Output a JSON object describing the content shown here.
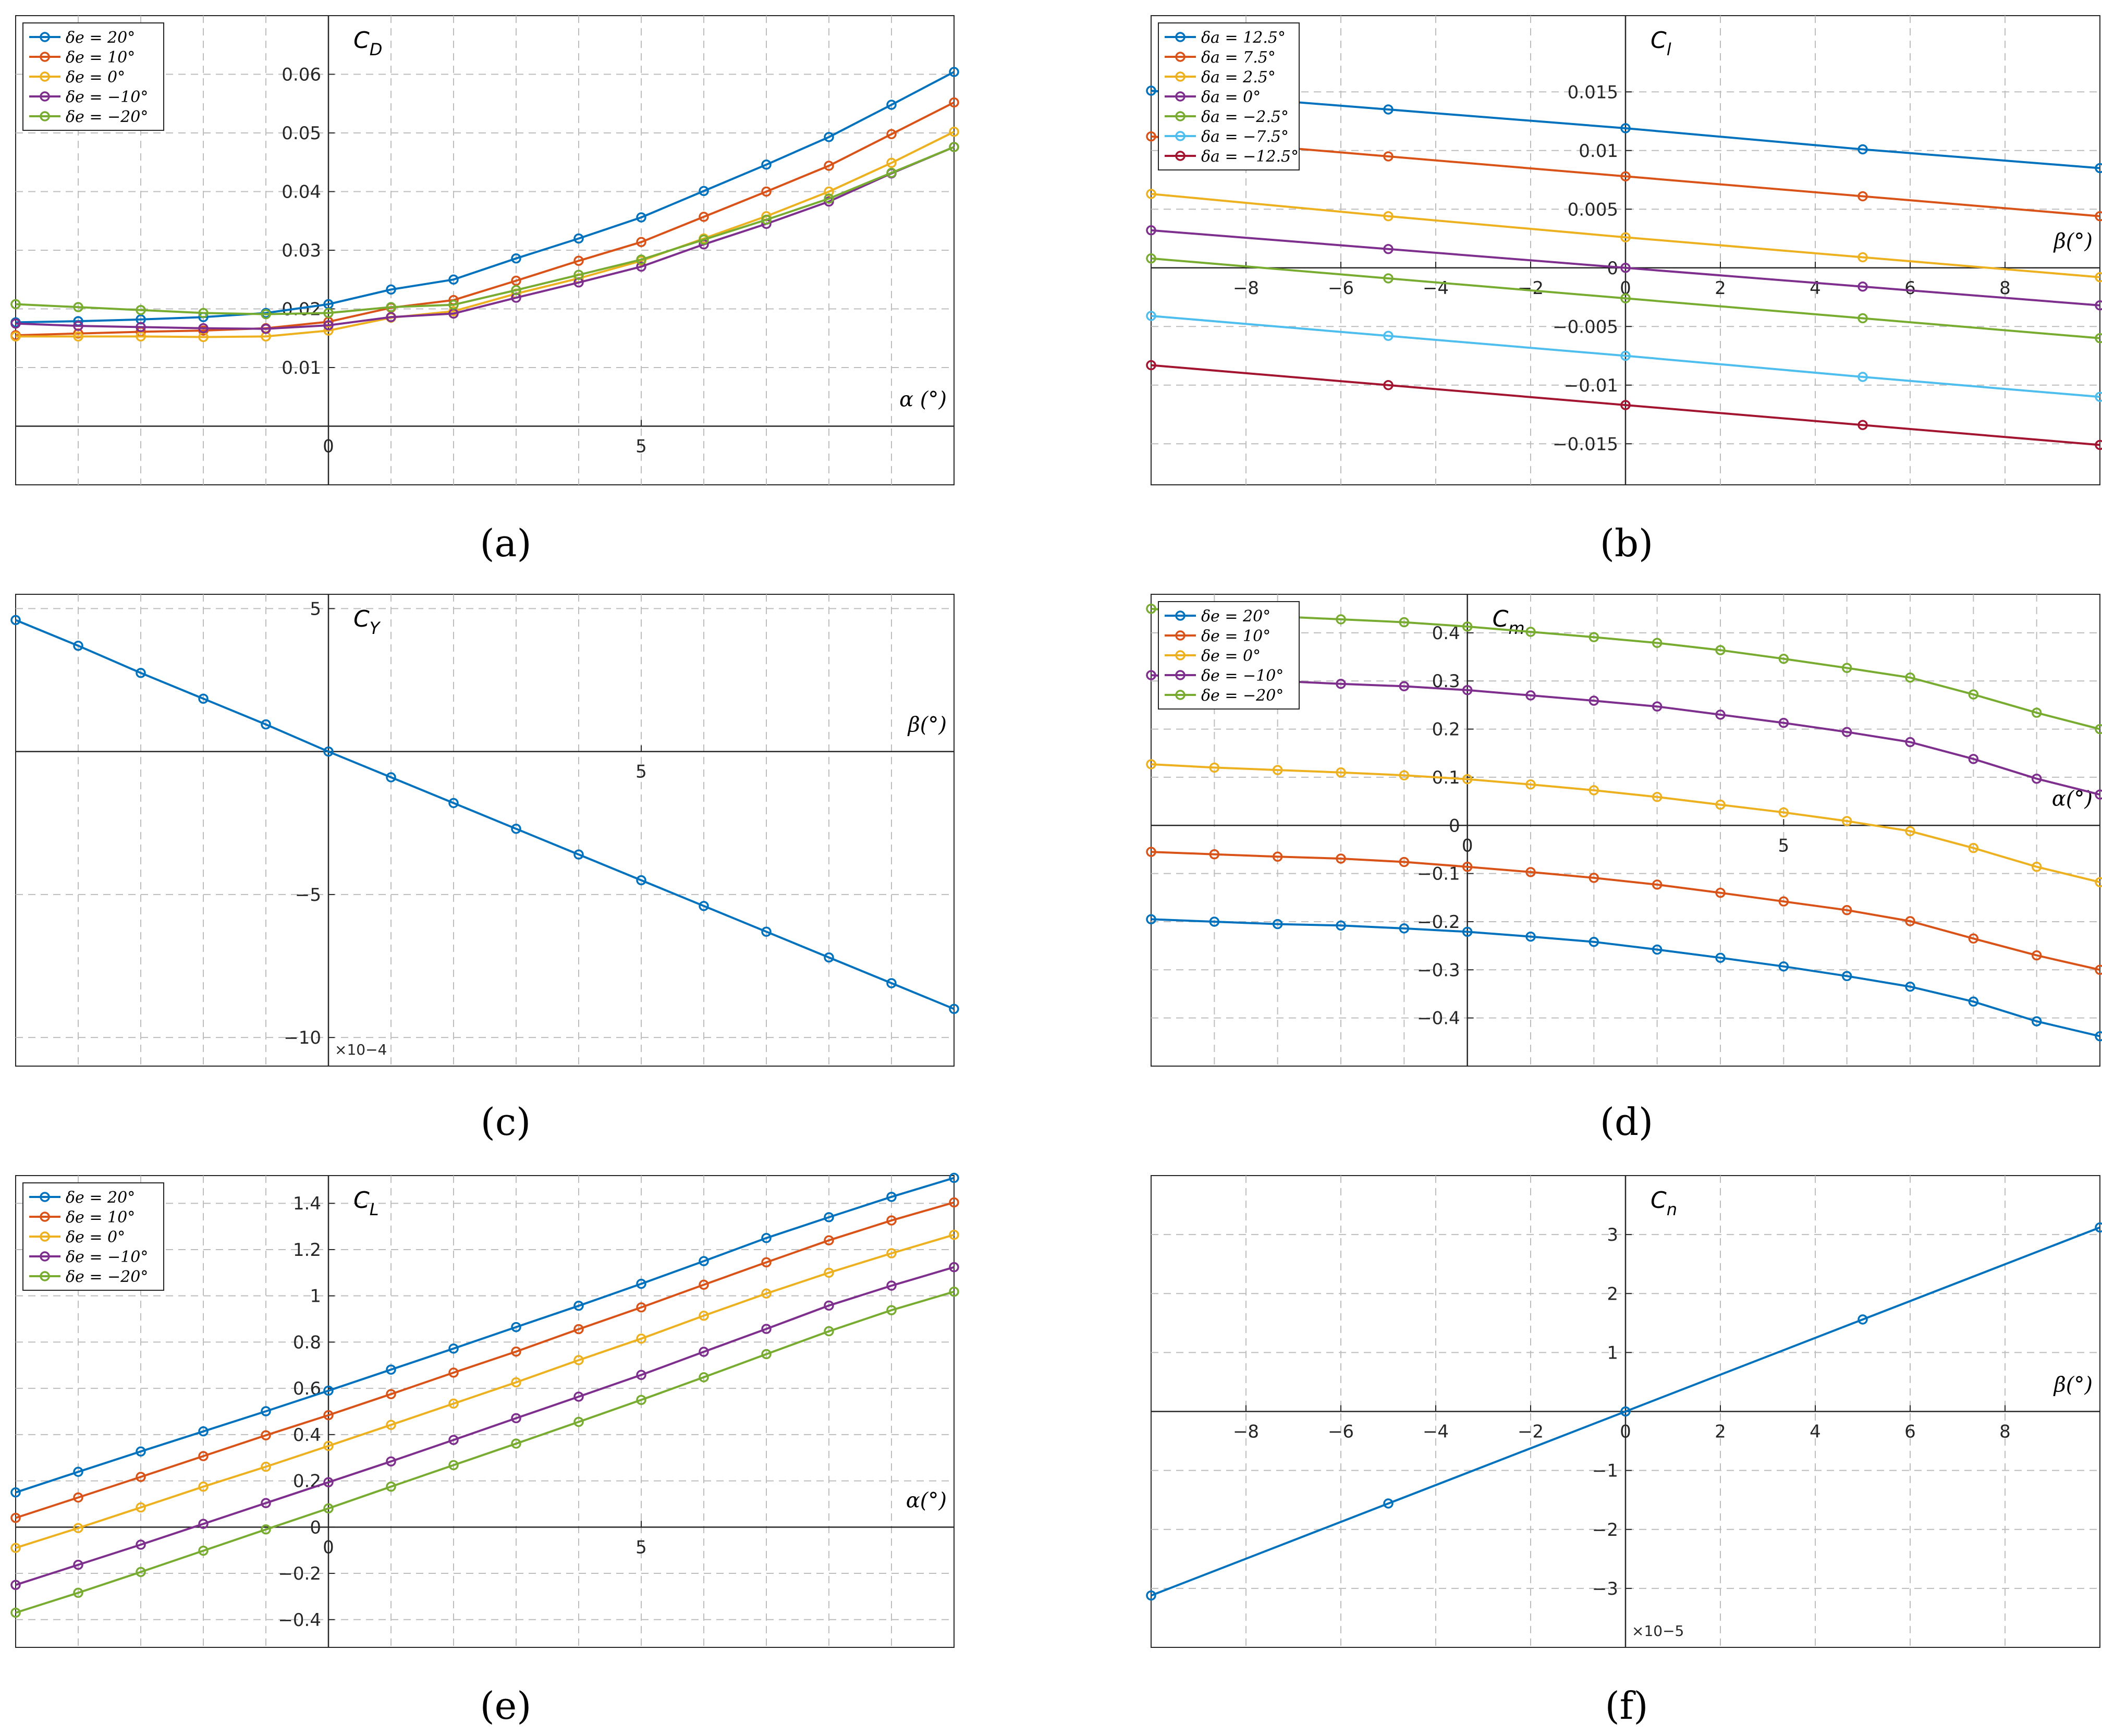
{
  "chart_data": [
    {
      "id": "a",
      "type": "line",
      "caption": "(a)",
      "title": "C",
      "title_sub": "D",
      "xlabel": "α (°)",
      "xlim": [
        -5,
        10
      ],
      "ylim": [
        -0.01,
        0.07
      ],
      "xticks": [
        {
          "v": 0,
          "label": "0"
        },
        {
          "v": 5,
          "label": "5"
        }
      ],
      "yticks": [
        {
          "v": 0.01,
          "label": "0.01"
        },
        {
          "v": 0.02,
          "label": "0.02"
        },
        {
          "v": 0.03,
          "label": "0.03"
        },
        {
          "v": 0.04,
          "label": "0.04"
        },
        {
          "v": 0.05,
          "label": "0.05"
        },
        {
          "v": 0.06,
          "label": "0.06"
        }
      ],
      "xgrid": [
        -4,
        -3,
        -2,
        -1,
        0,
        1,
        2,
        3,
        4,
        5,
        6,
        7,
        8,
        9
      ],
      "ygrid": [
        0.01,
        0.02,
        0.03,
        0.04,
        0.05,
        0.06
      ],
      "x": [
        -5,
        -4,
        -3,
        -2,
        -1,
        0,
        1,
        2,
        3,
        4,
        5,
        6,
        7,
        8,
        9,
        10
      ],
      "series": [
        {
          "name": "δe = 20°",
          "color": "#0072BD",
          "values": [
            0.0177,
            0.0179,
            0.0182,
            0.0186,
            0.0193,
            0.0208,
            0.0233,
            0.025,
            0.0286,
            0.032,
            0.0356,
            0.0401,
            0.0446,
            0.0493,
            0.0548,
            0.0604
          ]
        },
        {
          "name": "δe = 10°",
          "color": "#D95319",
          "values": [
            0.0155,
            0.0158,
            0.0161,
            0.0163,
            0.0167,
            0.0178,
            0.0202,
            0.0215,
            0.0248,
            0.0282,
            0.0314,
            0.0357,
            0.04,
            0.0444,
            0.0498,
            0.0552
          ]
        },
        {
          "name": "δe = 0°",
          "color": "#EDB120",
          "values": [
            0.0153,
            0.0153,
            0.0153,
            0.0152,
            0.0153,
            0.0163,
            0.0185,
            0.0196,
            0.0226,
            0.0252,
            0.0282,
            0.032,
            0.0358,
            0.04,
            0.0449,
            0.0502
          ]
        },
        {
          "name": "δe = −10°",
          "color": "#7E2F8E",
          "values": [
            0.0175,
            0.0171,
            0.0169,
            0.0167,
            0.0166,
            0.0172,
            0.0186,
            0.0192,
            0.0219,
            0.0245,
            0.0272,
            0.031,
            0.0345,
            0.0383,
            0.0431,
            0.0476
          ]
        },
        {
          "name": "δe = −20°",
          "color": "#77AC30",
          "values": [
            0.0208,
            0.0203,
            0.0198,
            0.0193,
            0.0191,
            0.0193,
            0.0203,
            0.0207,
            0.0232,
            0.0258,
            0.0284,
            0.0318,
            0.0352,
            0.0388,
            0.0432,
            0.0476
          ]
        }
      ],
      "legend": "top-left"
    },
    {
      "id": "b",
      "type": "line",
      "caption": "(b)",
      "title": "C",
      "title_sub": "l",
      "xlabel": "β(°)",
      "xlim": [
        -10,
        10
      ],
      "ylim": [
        -0.0185,
        0.0215
      ],
      "xticks": [
        {
          "v": -8,
          "label": "−8"
        },
        {
          "v": -6,
          "label": "−6"
        },
        {
          "v": -4,
          "label": "−4"
        },
        {
          "v": -2,
          "label": "−2"
        },
        {
          "v": 0,
          "label": "0"
        },
        {
          "v": 2,
          "label": "2"
        },
        {
          "v": 4,
          "label": "4"
        },
        {
          "v": 6,
          "label": "6"
        },
        {
          "v": 8,
          "label": "8"
        }
      ],
      "yticks": [
        {
          "v": -0.015,
          "label": "−0.015"
        },
        {
          "v": -0.01,
          "label": "−0.01"
        },
        {
          "v": -0.005,
          "label": "−0.005"
        },
        {
          "v": 0,
          "label": "0"
        },
        {
          "v": 0.005,
          "label": "0.005"
        },
        {
          "v": 0.01,
          "label": "0.01"
        },
        {
          "v": 0.015,
          "label": "0.015"
        }
      ],
      "xgrid": [
        -8,
        -6,
        -4,
        -2,
        0,
        2,
        4,
        6,
        8
      ],
      "ygrid": [
        -0.015,
        -0.01,
        -0.005,
        0.005,
        0.01,
        0.015
      ],
      "x": [
        -10,
        -5,
        0,
        5,
        10
      ],
      "series": [
        {
          "name": "δa = 12.5°",
          "color": "#0072BD",
          "values": [
            0.0151,
            0.0135,
            0.0119,
            0.0101,
            0.0085
          ]
        },
        {
          "name": "δa = 7.5°",
          "color": "#D95319",
          "values": [
            0.0112,
            0.0095,
            0.0078,
            0.0061,
            0.0044
          ]
        },
        {
          "name": "δa = 2.5°",
          "color": "#EDB120",
          "values": [
            0.0063,
            0.0044,
            0.0026,
            0.0009,
            -0.0008
          ]
        },
        {
          "name": "δa = 0°",
          "color": "#7E2F8E",
          "values": [
            0.0032,
            0.0016,
            0.0,
            -0.0016,
            -0.0032
          ]
        },
        {
          "name": "δa = −2.5°",
          "color": "#77AC30",
          "values": [
            0.0008,
            -0.0009,
            -0.0026,
            -0.0043,
            -0.006
          ]
        },
        {
          "name": "δa = −7.5°",
          "color": "#4DBEEE",
          "values": [
            -0.0041,
            -0.0058,
            -0.0075,
            -0.0093,
            -0.011
          ]
        },
        {
          "name": "δa = −12.5°",
          "color": "#A2142F",
          "values": [
            -0.0083,
            -0.01,
            -0.0117,
            -0.0134,
            -0.0151
          ]
        }
      ],
      "legend": "top-left"
    },
    {
      "id": "c",
      "type": "line",
      "caption": "(c)",
      "title": "C",
      "title_sub": "Y",
      "xlabel": "β(°)",
      "xlim": [
        -5,
        10
      ],
      "ylim": [
        -11,
        5.5
      ],
      "y_multiplier": "×10−4",
      "xticks": [
        {
          "v": 5,
          "label": "5"
        }
      ],
      "yticks": [
        {
          "v": -10,
          "label": "−10"
        },
        {
          "v": -5,
          "label": "−5"
        },
        {
          "v": 5,
          "label": "5"
        }
      ],
      "xgrid": [
        -4,
        -3,
        -2,
        -1,
        1,
        2,
        3,
        4,
        5,
        6,
        7,
        8,
        9
      ],
      "ygrid": [
        -10,
        -5,
        5
      ],
      "x": [
        -5,
        -4,
        -3,
        -2,
        -1,
        0,
        1,
        2,
        3,
        4,
        5,
        6,
        7,
        8,
        9,
        10
      ],
      "series": [
        {
          "name": "CY",
          "color": "#0072BD",
          "values": [
            4.6,
            3.7,
            2.75,
            1.85,
            0.95,
            0.0,
            -0.9,
            -1.8,
            -2.7,
            -3.6,
            -4.5,
            -5.4,
            -6.3,
            -7.2,
            -8.1,
            -9.0
          ]
        }
      ],
      "legend": "none"
    },
    {
      "id": "d",
      "type": "line",
      "caption": "(d)",
      "title": "C",
      "title_sub": "m",
      "xlabel": "α(°)",
      "xlim": [
        -5,
        10
      ],
      "ylim": [
        -0.5,
        0.48
      ],
      "xticks": [
        {
          "v": 0,
          "label": "0"
        },
        {
          "v": 5,
          "label": "5"
        }
      ],
      "yticks": [
        {
          "v": -0.4,
          "label": "−0.4"
        },
        {
          "v": -0.3,
          "label": "−0.3"
        },
        {
          "v": -0.2,
          "label": "−0.2"
        },
        {
          "v": -0.1,
          "label": "−0.1"
        },
        {
          "v": 0,
          "label": "0"
        },
        {
          "v": 0.1,
          "label": "0.1"
        },
        {
          "v": 0.2,
          "label": "0.2"
        },
        {
          "v": 0.3,
          "label": "0.3"
        },
        {
          "v": 0.4,
          "label": "0.4"
        }
      ],
      "xgrid": [
        -4,
        -3,
        -2,
        -1,
        1,
        2,
        3,
        4,
        5,
        6,
        7,
        8,
        9
      ],
      "ygrid": [
        -0.4,
        -0.3,
        -0.2,
        -0.1,
        0.1,
        0.2,
        0.3,
        0.4
      ],
      "x": [
        -5,
        -4,
        -3,
        -2,
        -1,
        0,
        1,
        2,
        3,
        4,
        5,
        6,
        7,
        8,
        9,
        10
      ],
      "series": [
        {
          "name": "δe = 20°",
          "color": "#0072BD",
          "values": [
            -0.195,
            -0.2,
            -0.205,
            -0.208,
            -0.214,
            -0.221,
            -0.231,
            -0.242,
            -0.258,
            -0.275,
            -0.293,
            -0.313,
            -0.335,
            -0.366,
            -0.407,
            -0.438
          ]
        },
        {
          "name": "δe = 10°",
          "color": "#D95319",
          "values": [
            -0.055,
            -0.06,
            -0.065,
            -0.069,
            -0.076,
            -0.086,
            -0.097,
            -0.109,
            -0.123,
            -0.14,
            -0.158,
            -0.176,
            -0.199,
            -0.235,
            -0.27,
            -0.3
          ]
        },
        {
          "name": "δe = 0°",
          "color": "#EDB120",
          "values": [
            0.127,
            0.12,
            0.115,
            0.11,
            0.104,
            0.096,
            0.085,
            0.073,
            0.059,
            0.043,
            0.027,
            0.009,
            -0.012,
            -0.047,
            -0.086,
            -0.118
          ]
        },
        {
          "name": "δe = −10°",
          "color": "#7E2F8E",
          "values": [
            0.312,
            0.305,
            0.3,
            0.294,
            0.289,
            0.281,
            0.27,
            0.259,
            0.247,
            0.23,
            0.213,
            0.194,
            0.173,
            0.138,
            0.097,
            0.064
          ]
        },
        {
          "name": "δe = −20°",
          "color": "#77AC30",
          "values": [
            0.45,
            0.44,
            0.434,
            0.428,
            0.422,
            0.413,
            0.402,
            0.391,
            0.379,
            0.364,
            0.346,
            0.327,
            0.307,
            0.272,
            0.234,
            0.2
          ]
        }
      ],
      "legend": "top-left"
    },
    {
      "id": "e",
      "type": "line",
      "caption": "(e)",
      "title": "C",
      "title_sub": "L",
      "xlabel": "α(°)",
      "xlim": [
        -5,
        10
      ],
      "ylim": [
        -0.52,
        1.52
      ],
      "xticks": [
        {
          "v": 0,
          "label": "0"
        },
        {
          "v": 5,
          "label": "5"
        }
      ],
      "yticks": [
        {
          "v": -0.4,
          "label": "−0.4"
        },
        {
          "v": -0.2,
          "label": "−0.2"
        },
        {
          "v": 0,
          "label": "0"
        },
        {
          "v": 0.2,
          "label": "0.2"
        },
        {
          "v": 0.4,
          "label": "0.4"
        },
        {
          "v": 0.6,
          "label": "0.6"
        },
        {
          "v": 0.8,
          "label": "0.8"
        },
        {
          "v": 1,
          "label": "1"
        },
        {
          "v": 1.2,
          "label": "1.2"
        },
        {
          "v": 1.4,
          "label": "1.4"
        }
      ],
      "xgrid": [
        -4,
        -3,
        -2,
        -1,
        0,
        1,
        2,
        3,
        4,
        5,
        6,
        7,
        8,
        9
      ],
      "ygrid": [
        -0.4,
        -0.2,
        0.2,
        0.4,
        0.6,
        0.8,
        1,
        1.2,
        1.4
      ],
      "x": [
        -5,
        -4,
        -3,
        -2,
        -1,
        0,
        1,
        2,
        3,
        4,
        5,
        6,
        7,
        8,
        9,
        10
      ],
      "series": [
        {
          "name": "δe = 20°",
          "color": "#0072BD",
          "values": [
            0.15,
            0.239,
            0.327,
            0.414,
            0.501,
            0.59,
            0.681,
            0.772,
            0.865,
            0.957,
            1.052,
            1.15,
            1.25,
            1.34,
            1.428,
            1.51
          ]
        },
        {
          "name": "δe = 10°",
          "color": "#D95319",
          "values": [
            0.04,
            0.128,
            0.217,
            0.307,
            0.397,
            0.484,
            0.575,
            0.668,
            0.759,
            0.856,
            0.95,
            1.048,
            1.145,
            1.24,
            1.326,
            1.404
          ]
        },
        {
          "name": "δe = 0°",
          "color": "#EDB120",
          "values": [
            -0.09,
            -0.004,
            0.085,
            0.175,
            0.261,
            0.351,
            0.442,
            0.534,
            0.626,
            0.722,
            0.815,
            0.914,
            1.01,
            1.1,
            1.184,
            1.264
          ]
        },
        {
          "name": "δe = −10°",
          "color": "#7E2F8E",
          "values": [
            -0.25,
            -0.163,
            -0.076,
            0.014,
            0.104,
            0.194,
            0.284,
            0.377,
            0.471,
            0.564,
            0.658,
            0.758,
            0.857,
            0.958,
            1.044,
            1.124
          ]
        },
        {
          "name": "δe = −20°",
          "color": "#77AC30",
          "values": [
            -0.37,
            -0.284,
            -0.194,
            -0.102,
            -0.01,
            0.081,
            0.175,
            0.268,
            0.361,
            0.455,
            0.55,
            0.648,
            0.748,
            0.847,
            0.938,
            1.018
          ]
        }
      ],
      "legend": "top-left"
    },
    {
      "id": "f",
      "type": "line",
      "caption": "(f)",
      "title": "C",
      "title_sub": "n",
      "xlabel": "β(°)",
      "xlim": [
        -10,
        10
      ],
      "ylim": [
        -4,
        4
      ],
      "y_multiplier": "×10−5",
      "xticks": [
        {
          "v": -8,
          "label": "−8"
        },
        {
          "v": -6,
          "label": "−6"
        },
        {
          "v": -4,
          "label": "−4"
        },
        {
          "v": -2,
          "label": "−2"
        },
        {
          "v": 0,
          "label": "0"
        },
        {
          "v": 2,
          "label": "2"
        },
        {
          "v": 4,
          "label": "4"
        },
        {
          "v": 6,
          "label": "6"
        },
        {
          "v": 8,
          "label": "8"
        }
      ],
      "yticks": [
        {
          "v": -3,
          "label": "−3"
        },
        {
          "v": -2,
          "label": "−2"
        },
        {
          "v": -1,
          "label": "−1"
        },
        {
          "v": 1,
          "label": "1"
        },
        {
          "v": 2,
          "label": "2"
        },
        {
          "v": 3,
          "label": "3"
        }
      ],
      "xgrid": [
        -8,
        -6,
        -4,
        -2,
        0,
        2,
        4,
        6,
        8
      ],
      "ygrid": [
        -3,
        -2,
        -1,
        1,
        2,
        3
      ],
      "x": [
        -10,
        -5,
        0,
        5,
        10
      ],
      "series": [
        {
          "name": "Cn",
          "color": "#0072BD",
          "values": [
            -3.12,
            -1.56,
            0.0,
            1.56,
            3.12
          ]
        }
      ],
      "legend": "none"
    }
  ]
}
